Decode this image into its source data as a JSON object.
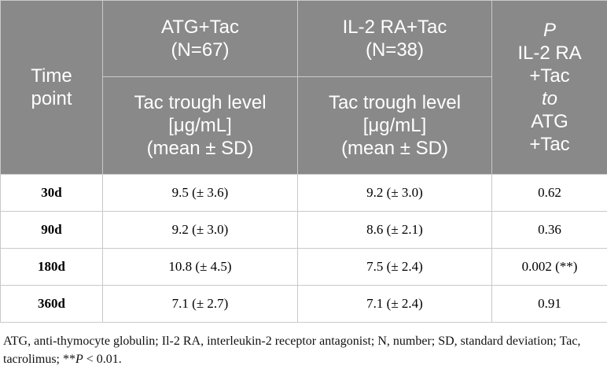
{
  "table": {
    "header": {
      "time_point": [
        "Time",
        "point"
      ],
      "groups": [
        {
          "name": "ATG+Tac",
          "n": "(N=67)",
          "measure": [
            "Tac trough level",
            "[μg/mL]",
            "(mean ± SD)"
          ]
        },
        {
          "name": "IL-2 RA+Tac",
          "n": "(N=38)",
          "measure": [
            "Tac trough level",
            "[μg/mL]",
            "(mean ± SD)"
          ]
        }
      ],
      "p": [
        "P",
        "IL-2 RA",
        "+Tac",
        "to",
        "ATG",
        "+Tac"
      ]
    },
    "rows": [
      [
        "30d",
        "9.5 (± 3.6)",
        "9.2 (± 3.0)",
        "0.62"
      ],
      [
        "90d",
        "9.2 (± 3.0)",
        "8.6 (± 2.1)",
        "0.36"
      ],
      [
        "180d",
        "10.8 (± 4.5)",
        "7.5 (± 2.4)",
        "0.002 (**)"
      ],
      [
        "360d",
        "7.1 (± 2.7)",
        "7.1 (± 2.4)",
        "0.91"
      ]
    ]
  },
  "footnote": [
    "ATG, anti-thymocyte globulin; Il-2 RA, interleukin-2 receptor antagonist; N, number; SD, standard deviation; Tac, tacrolimus; **",
    "P",
    " < 0.01."
  ]
}
